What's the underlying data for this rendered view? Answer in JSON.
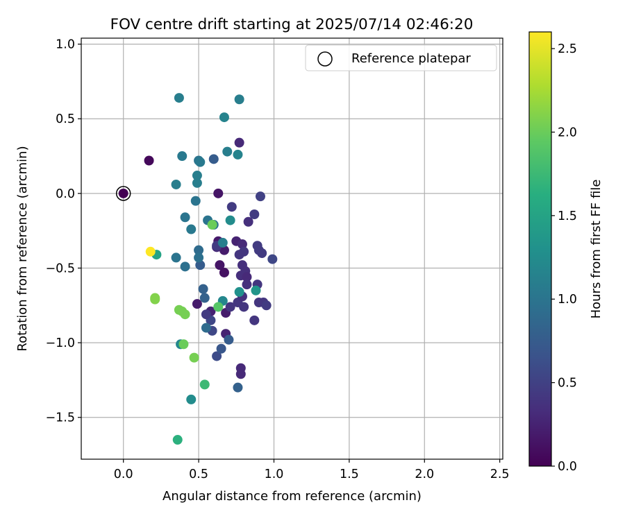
{
  "chart_data": {
    "type": "scatter",
    "title": "FOV centre drift starting at 2025/07/14 02:46:20",
    "xlabel": "Angular distance from reference (arcmin)",
    "ylabel": "Rotation from reference (arcmin)",
    "xlim": [
      -0.28,
      2.52
    ],
    "ylim": [
      -1.78,
      1.04
    ],
    "xticks": [
      0.0,
      0.5,
      1.0,
      1.5,
      2.0,
      2.5
    ],
    "xtick_labels": [
      "0.0",
      "0.5",
      "1.0",
      "1.5",
      "2.0",
      "2.5"
    ],
    "yticks": [
      -1.5,
      -1.0,
      -0.5,
      0.0,
      0.5,
      1.0
    ],
    "ytick_labels": [
      "−1.5",
      "−1.0",
      "−0.5",
      "0.0",
      "0.5",
      "1.0"
    ],
    "grid": true,
    "legend": {
      "placement": "top-right",
      "label": "Reference platepar"
    },
    "reference_point": {
      "x": 0.0,
      "y": 0.0
    },
    "colorbar": {
      "label": "Hours from first FF file",
      "colormap": "viridis",
      "range": [
        0.0,
        2.6
      ],
      "ticks": [
        0.0,
        0.5,
        1.0,
        1.5,
        2.0,
        2.5
      ],
      "tick_labels": [
        "0.0",
        "0.5",
        "1.0",
        "1.5",
        "2.0",
        "2.5"
      ]
    },
    "points": [
      {
        "x": 0.17,
        "y": 0.22,
        "t": 0.05
      },
      {
        "x": 0.63,
        "y": 0.0,
        "t": 0.15
      },
      {
        "x": 0.63,
        "y": -0.32,
        "t": 0.18
      },
      {
        "x": 0.67,
        "y": -0.38,
        "t": 0.2
      },
      {
        "x": 0.75,
        "y": -0.32,
        "t": 0.25
      },
      {
        "x": 0.64,
        "y": -0.48,
        "t": 0.15
      },
      {
        "x": 0.67,
        "y": -0.53,
        "t": 0.12
      },
      {
        "x": 0.79,
        "y": -0.34,
        "t": 0.3
      },
      {
        "x": 0.62,
        "y": -0.36,
        "t": 0.3
      },
      {
        "x": 0.49,
        "y": -0.74,
        "t": 0.2
      },
      {
        "x": 0.58,
        "y": -0.79,
        "t": 0.25
      },
      {
        "x": 0.68,
        "y": -0.8,
        "t": 0.2
      },
      {
        "x": 0.68,
        "y": -0.94,
        "t": 0.25
      },
      {
        "x": 0.78,
        "y": -1.17,
        "t": 0.3
      },
      {
        "x": 0.78,
        "y": -1.21,
        "t": 0.3
      },
      {
        "x": 0.77,
        "y": 0.34,
        "t": 0.3
      },
      {
        "x": 0.77,
        "y": -0.41,
        "t": 0.4
      },
      {
        "x": 0.79,
        "y": -0.48,
        "t": 0.35
      },
      {
        "x": 0.8,
        "y": -0.39,
        "t": 0.4
      },
      {
        "x": 0.78,
        "y": -0.55,
        "t": 0.35
      },
      {
        "x": 0.81,
        "y": -0.52,
        "t": 0.35
      },
      {
        "x": 0.82,
        "y": -0.56,
        "t": 0.3
      },
      {
        "x": 0.82,
        "y": -0.61,
        "t": 0.35
      },
      {
        "x": 0.83,
        "y": -0.19,
        "t": 0.35
      },
      {
        "x": 0.87,
        "y": -0.14,
        "t": 0.45
      },
      {
        "x": 0.89,
        "y": -0.35,
        "t": 0.45
      },
      {
        "x": 0.9,
        "y": -0.38,
        "t": 0.45
      },
      {
        "x": 0.92,
        "y": -0.4,
        "t": 0.45
      },
      {
        "x": 0.91,
        "y": -0.02,
        "t": 0.5
      },
      {
        "x": 0.99,
        "y": -0.44,
        "t": 0.55
      },
      {
        "x": 0.89,
        "y": -0.61,
        "t": 0.4
      },
      {
        "x": 0.72,
        "y": -0.09,
        "t": 0.45
      },
      {
        "x": 0.71,
        "y": -0.76,
        "t": 0.4
      },
      {
        "x": 0.76,
        "y": -0.73,
        "t": 0.4
      },
      {
        "x": 0.79,
        "y": -0.69,
        "t": 0.35
      },
      {
        "x": 0.8,
        "y": -0.76,
        "t": 0.4
      },
      {
        "x": 0.87,
        "y": -0.85,
        "t": 0.4
      },
      {
        "x": 0.9,
        "y": -0.73,
        "t": 0.4
      },
      {
        "x": 0.93,
        "y": -0.73,
        "t": 0.4
      },
      {
        "x": 0.95,
        "y": -0.75,
        "t": 0.45
      },
      {
        "x": 0.62,
        "y": -0.35,
        "t": 0.45
      },
      {
        "x": 0.58,
        "y": -0.85,
        "t": 0.55
      },
      {
        "x": 0.55,
        "y": -0.81,
        "t": 0.45
      },
      {
        "x": 0.59,
        "y": -0.92,
        "t": 0.55
      },
      {
        "x": 0.62,
        "y": -1.09,
        "t": 0.6
      },
      {
        "x": 0.65,
        "y": -1.04,
        "t": 0.7
      },
      {
        "x": 0.7,
        "y": -0.98,
        "t": 0.75
      },
      {
        "x": 0.76,
        "y": -1.3,
        "t": 0.8
      },
      {
        "x": 0.51,
        "y": -0.48,
        "t": 0.75
      },
      {
        "x": 0.53,
        "y": -0.64,
        "t": 0.8
      },
      {
        "x": 0.54,
        "y": -0.7,
        "t": 0.8
      },
      {
        "x": 0.55,
        "y": -0.9,
        "t": 0.9
      },
      {
        "x": 0.6,
        "y": 0.23,
        "t": 0.75
      },
      {
        "x": 0.5,
        "y": -0.38,
        "t": 0.9
      },
      {
        "x": 0.5,
        "y": -0.43,
        "t": 0.95
      },
      {
        "x": 0.41,
        "y": -0.49,
        "t": 0.95
      },
      {
        "x": 0.35,
        "y": -0.43,
        "t": 1.0
      },
      {
        "x": 0.41,
        "y": -0.16,
        "t": 1.0
      },
      {
        "x": 0.45,
        "y": -0.24,
        "t": 1.05
      },
      {
        "x": 0.48,
        "y": -0.05,
        "t": 1.0
      },
      {
        "x": 0.49,
        "y": 0.07,
        "t": 1.1
      },
      {
        "x": 0.49,
        "y": 0.12,
        "t": 1.1
      },
      {
        "x": 0.5,
        "y": 0.22,
        "t": 1.0
      },
      {
        "x": 0.51,
        "y": 0.21,
        "t": 1.05
      },
      {
        "x": 0.56,
        "y": -0.18,
        "t": 1.0
      },
      {
        "x": 0.6,
        "y": -0.21,
        "t": 1.0
      },
      {
        "x": 0.35,
        "y": 0.06,
        "t": 1.1
      },
      {
        "x": 0.39,
        "y": 0.25,
        "t": 1.05
      },
      {
        "x": 0.37,
        "y": 0.64,
        "t": 1.1
      },
      {
        "x": 0.67,
        "y": 0.51,
        "t": 1.15
      },
      {
        "x": 0.69,
        "y": 0.28,
        "t": 1.1
      },
      {
        "x": 0.76,
        "y": 0.26,
        "t": 1.15
      },
      {
        "x": 0.77,
        "y": 0.63,
        "t": 1.1
      },
      {
        "x": 0.71,
        "y": -0.18,
        "t": 1.25
      },
      {
        "x": 0.66,
        "y": -0.33,
        "t": 1.1
      },
      {
        "x": 0.66,
        "y": -0.72,
        "t": 1.2
      },
      {
        "x": 0.77,
        "y": -0.66,
        "t": 1.3
      },
      {
        "x": 0.88,
        "y": -0.65,
        "t": 1.35
      },
      {
        "x": 0.38,
        "y": -1.01,
        "t": 1.2
      },
      {
        "x": 0.45,
        "y": -1.38,
        "t": 1.25
      },
      {
        "x": 0.22,
        "y": -0.41,
        "t": 1.5
      },
      {
        "x": 0.36,
        "y": -1.65,
        "t": 1.65
      },
      {
        "x": 0.54,
        "y": -1.28,
        "t": 1.75
      },
      {
        "x": 0.63,
        "y": -0.76,
        "t": 1.9
      },
      {
        "x": 0.59,
        "y": -0.21,
        "t": 2.0
      },
      {
        "x": 0.4,
        "y": -1.01,
        "t": 2.0
      },
      {
        "x": 0.47,
        "y": -1.1,
        "t": 2.05
      },
      {
        "x": 0.37,
        "y": -0.78,
        "t": 2.05
      },
      {
        "x": 0.39,
        "y": -0.79,
        "t": 2.05
      },
      {
        "x": 0.41,
        "y": -0.81,
        "t": 2.05
      },
      {
        "x": 0.21,
        "y": -0.7,
        "t": 2.1
      },
      {
        "x": 0.21,
        "y": -0.71,
        "t": 2.1
      },
      {
        "x": 0.18,
        "y": -0.39,
        "t": 2.6
      }
    ]
  }
}
